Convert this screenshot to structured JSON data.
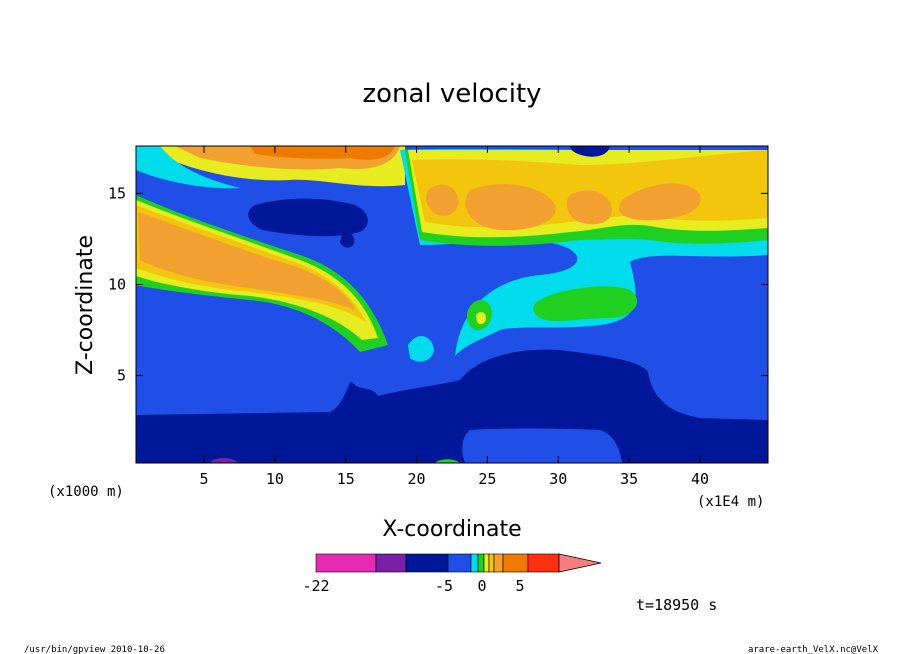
{
  "chart_data": {
    "type": "heatmap",
    "title": "zonal velocity",
    "xlabel": "X-coordinate",
    "ylabel": "Z-coordinate",
    "x_units_left": "(x1000 m)",
    "x_units_right": "(x1E4 m)",
    "xlim": [
      0.2,
      44.8
    ],
    "ylim": [
      0.2,
      17.6
    ],
    "xticks": [
      5,
      10,
      15,
      20,
      25,
      30,
      35,
      40
    ],
    "yticks": [
      5,
      10,
      15
    ],
    "colorbar": {
      "labels": [
        {
          "value": -22,
          "text": "-22"
        },
        {
          "value": -5,
          "text": "-5"
        },
        {
          "value": 0,
          "text": "0"
        },
        {
          "value": 5,
          "text": "5"
        }
      ],
      "colors": [
        "#e62ab4",
        "#7a1fa8",
        "#001799",
        "#1f4fe6",
        "#00dcec",
        "#20d020",
        "#e6ec20",
        "#f2c60c",
        "#f2a030",
        "#ee7a00",
        "#ff3010",
        "#f77e7e"
      ]
    },
    "time_label": "t=18950 s",
    "footer_left": "/usr/bin/gpview   2010-10-26",
    "footer_right": "arare-earth_VelX.nc@VelX"
  },
  "colors": {
    "deep_negative": "#001799",
    "negative": "#1f4fe6",
    "near_zero": "#00dcec",
    "weak_positive": "#20d020",
    "positive": "#e6ec20",
    "moderate_positive": "#f2c60c",
    "strong_positive": "#f2a030",
    "max_positive": "#ee7a00"
  }
}
